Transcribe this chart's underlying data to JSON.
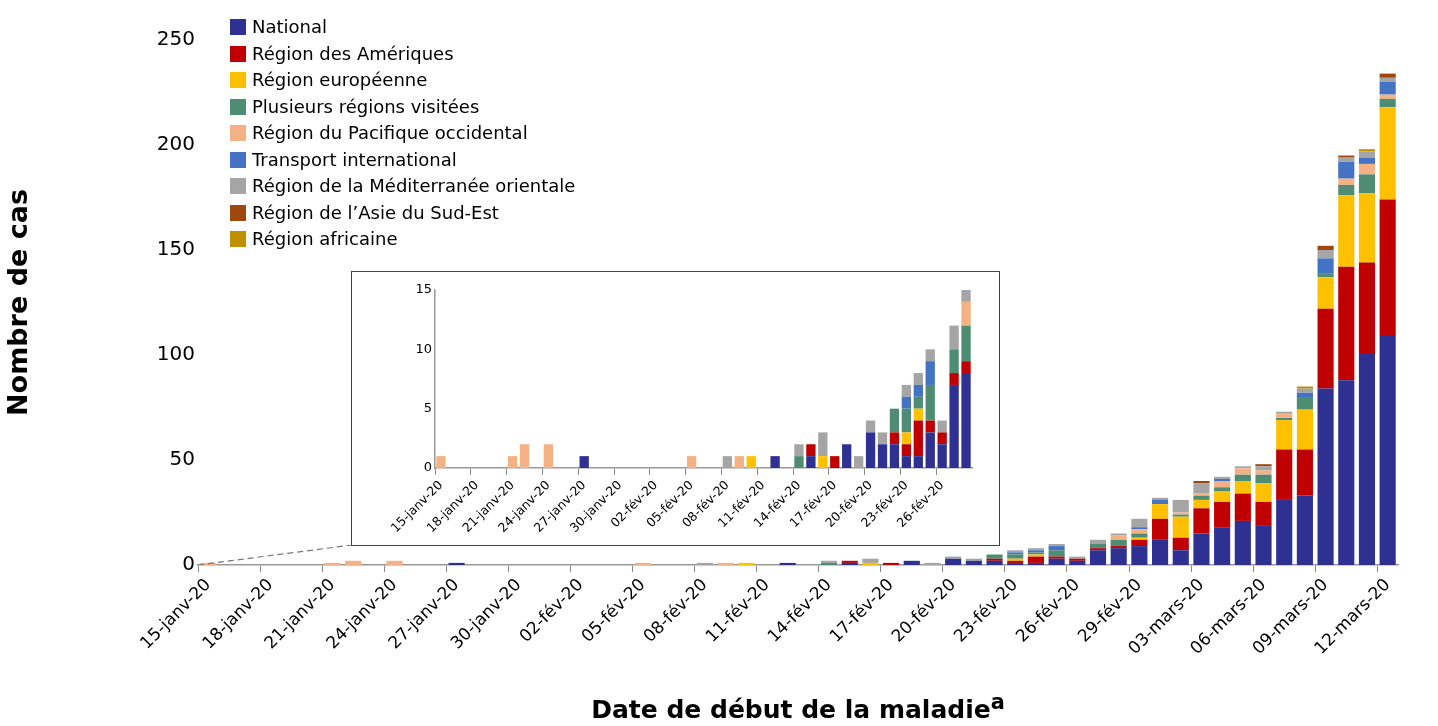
{
  "chart_data": [
    {
      "type": "bar",
      "stacked": true,
      "xlabel": "Date de début de la maladie$^{a}$",
      "ylabel": "Nombre de cas",
      "legend": "top left",
      "grid": false,
      "categories": [
        "15-janv-20",
        null,
        null,
        "18-janv-20",
        null,
        null,
        "21-janv-20",
        null,
        null,
        "24-janv-20",
        null,
        null,
        "27-janv-20",
        null,
        null,
        "30-janv-20",
        null,
        null,
        "02-fév-20",
        null,
        null,
        "05-fév-20",
        null,
        null,
        "08-fév-20",
        null,
        null,
        "11-fév-20",
        null,
        null,
        "14-fév-20",
        null,
        null,
        "17-fév-20",
        null,
        null,
        "20-fév-20",
        null,
        null,
        "23-fév-20",
        null,
        null,
        "26-fév-20",
        null,
        null,
        "29-fév-20",
        null,
        null,
        "03-mars-20",
        null,
        null,
        "06-mars-20",
        null,
        null,
        "09-mars-20",
        null,
        null,
        "12-mars-20"
      ],
      "ylim": [
        0,
        250
      ],
      "yticks": [
        0,
        50,
        100,
        150,
        200,
        250
      ],
      "series": [
        {
          "name": "National",
          "color": "#2e3192",
          "values": [
            0,
            0,
            0,
            0,
            0,
            0,
            0,
            0,
            0,
            0,
            0,
            0,
            1,
            0,
            0,
            0,
            0,
            0,
            0,
            0,
            0,
            0,
            0,
            0,
            0,
            0,
            0,
            0,
            1,
            0,
            0,
            1,
            0,
            0,
            2,
            0,
            3,
            2,
            2,
            1,
            1,
            3,
            2,
            7,
            8,
            9,
            12,
            7,
            15,
            18,
            21,
            19,
            31,
            33,
            84,
            88,
            101,
            109
          ]
        },
        {
          "name": "Région des Amériques",
          "color": "#c00000",
          "values": [
            0,
            0,
            0,
            0,
            0,
            0,
            0,
            0,
            0,
            0,
            0,
            0,
            0,
            0,
            0,
            0,
            0,
            0,
            0,
            0,
            0,
            0,
            0,
            0,
            0,
            0,
            0,
            0,
            0,
            0,
            0,
            1,
            0,
            1,
            0,
            0,
            0,
            0,
            1,
            1,
            3,
            1,
            1,
            1,
            1,
            3,
            10,
            6,
            12,
            12,
            13,
            11,
            24,
            22,
            38,
            54,
            43,
            65
          ]
        },
        {
          "name": "Région européenne",
          "color": "#ffc000",
          "values": [
            0,
            0,
            0,
            0,
            0,
            0,
            0,
            0,
            0,
            0,
            0,
            0,
            0,
            0,
            0,
            0,
            0,
            0,
            0,
            0,
            0,
            0,
            0,
            0,
            0,
            0,
            1,
            0,
            0,
            0,
            0,
            0,
            1,
            0,
            0,
            0,
            0,
            0,
            0,
            1,
            1,
            0,
            0,
            0,
            0,
            1,
            7,
            10,
            4,
            5,
            6,
            9,
            14,
            19,
            15,
            34,
            33,
            44
          ]
        },
        {
          "name": "Plusieurs régions visitées",
          "color": "#4e8c74",
          "values": [
            0,
            0,
            0,
            0,
            0,
            0,
            0,
            0,
            0,
            0,
            0,
            0,
            0,
            0,
            0,
            0,
            0,
            0,
            0,
            0,
            0,
            0,
            0,
            0,
            0,
            0,
            0,
            0,
            0,
            0,
            1,
            0,
            0,
            0,
            0,
            0,
            0,
            0,
            2,
            2,
            1,
            3,
            0,
            2,
            3,
            2,
            0,
            1,
            2,
            2,
            3,
            4,
            1,
            6,
            2,
            5,
            9,
            4
          ]
        },
        {
          "name": "Région du Pacifique occidental",
          "color": "#f4b183",
          "values": [
            1,
            0,
            0,
            0,
            0,
            0,
            1,
            2,
            0,
            2,
            0,
            0,
            0,
            0,
            0,
            0,
            0,
            0,
            0,
            0,
            0,
            1,
            0,
            0,
            0,
            1,
            0,
            0,
            0,
            0,
            0,
            0,
            0,
            0,
            0,
            0,
            0,
            0,
            0,
            0,
            0,
            0,
            0,
            0,
            2,
            2,
            0,
            1,
            1,
            3,
            3,
            2,
            2,
            0,
            0,
            3,
            5,
            2
          ]
        },
        {
          "name": "Transport international",
          "color": "#4472c4",
          "values": [
            0,
            0,
            0,
            0,
            0,
            0,
            0,
            0,
            0,
            0,
            0,
            0,
            0,
            0,
            0,
            0,
            0,
            0,
            0,
            0,
            0,
            0,
            0,
            0,
            0,
            0,
            0,
            0,
            0,
            0,
            0,
            0,
            0,
            0,
            0,
            0,
            0,
            0,
            0,
            1,
            1,
            2,
            0,
            0,
            0,
            1,
            2,
            0,
            0,
            1,
            0,
            0,
            0,
            2,
            7,
            8,
            3,
            6
          ]
        },
        {
          "name": "Région de la Méditerranée orientale",
          "color": "#a5a5a5",
          "values": [
            0,
            0,
            0,
            0,
            0,
            0,
            0,
            0,
            0,
            0,
            0,
            0,
            0,
            0,
            0,
            0,
            0,
            0,
            0,
            0,
            0,
            0,
            0,
            0,
            1,
            0,
            0,
            0,
            0,
            0,
            1,
            0,
            2,
            0,
            0,
            1,
            1,
            1,
            0,
            1,
            1,
            1,
            1,
            2,
            1,
            4,
            1,
            6,
            5,
            1,
            1,
            2,
            1,
            2,
            4,
            2,
            3,
            2
          ]
        },
        {
          "name": "Région de l’Asie du Sud-Est",
          "color": "#9e480e",
          "values": [
            0,
            0,
            0,
            0,
            0,
            0,
            0,
            0,
            0,
            0,
            0,
            0,
            0,
            0,
            0,
            0,
            0,
            0,
            0,
            0,
            0,
            0,
            0,
            0,
            0,
            0,
            0,
            0,
            0,
            0,
            0,
            0,
            0,
            0,
            0,
            0,
            0,
            0,
            0,
            0,
            0,
            0,
            0,
            0,
            0,
            0,
            0,
            0,
            1,
            0,
            0,
            1,
            0,
            0,
            2,
            1,
            0,
            2
          ]
        },
        {
          "name": "Région africaine",
          "color": "#bf9000",
          "values": [
            0,
            0,
            0,
            0,
            0,
            0,
            0,
            0,
            0,
            0,
            0,
            0,
            0,
            0,
            0,
            0,
            0,
            0,
            0,
            0,
            0,
            0,
            0,
            0,
            0,
            0,
            0,
            0,
            0,
            0,
            0,
            0,
            0,
            0,
            0,
            0,
            0,
            0,
            0,
            0,
            0,
            0,
            0,
            0,
            0,
            0,
            0,
            0,
            0,
            0,
            0,
            0,
            0,
            1,
            0,
            0,
            1,
            0
          ]
        }
      ]
    },
    {
      "type": "bar",
      "stacked": true,
      "grid": false,
      "categories": [
        "15-janv-20",
        null,
        null,
        "18-janv-20",
        null,
        null,
        "21-janv-20",
        null,
        null,
        "24-janv-20",
        null,
        null,
        "27-janv-20",
        null,
        null,
        "30-janv-20",
        null,
        null,
        "02-fév-20",
        null,
        null,
        "05-fév-20",
        null,
        null,
        "08-fév-20",
        null,
        null,
        "11-fév-20",
        null,
        null,
        "14-fév-20",
        null,
        null,
        "17-fév-20",
        null,
        null,
        "20-fév-20",
        null,
        null,
        "23-fév-20",
        null,
        null,
        "26-fév-20",
        null,
        null
      ],
      "ylim": [
        0,
        15
      ],
      "yticks": [
        0,
        5,
        10,
        15
      ],
      "series": [
        {
          "color": "#2e3192",
          "values": [
            0,
            0,
            0,
            0,
            0,
            0,
            0,
            0,
            0,
            0,
            0,
            0,
            1,
            0,
            0,
            0,
            0,
            0,
            0,
            0,
            0,
            0,
            0,
            0,
            0,
            0,
            0,
            0,
            1,
            0,
            0,
            1,
            0,
            0,
            2,
            0,
            3,
            2,
            2,
            1,
            1,
            3,
            2,
            7,
            8
          ]
        },
        {
          "color": "#c00000",
          "values": [
            0,
            0,
            0,
            0,
            0,
            0,
            0,
            0,
            0,
            0,
            0,
            0,
            0,
            0,
            0,
            0,
            0,
            0,
            0,
            0,
            0,
            0,
            0,
            0,
            0,
            0,
            0,
            0,
            0,
            0,
            0,
            1,
            0,
            1,
            0,
            0,
            0,
            0,
            1,
            1,
            3,
            1,
            1,
            1,
            1
          ]
        },
        {
          "color": "#ffc000",
          "values": [
            0,
            0,
            0,
            0,
            0,
            0,
            0,
            0,
            0,
            0,
            0,
            0,
            0,
            0,
            0,
            0,
            0,
            0,
            0,
            0,
            0,
            0,
            0,
            0,
            0,
            0,
            1,
            0,
            0,
            0,
            0,
            0,
            1,
            0,
            0,
            0,
            0,
            0,
            0,
            1,
            1,
            0,
            0,
            0,
            0
          ]
        },
        {
          "color": "#4e8c74",
          "values": [
            0,
            0,
            0,
            0,
            0,
            0,
            0,
            0,
            0,
            0,
            0,
            0,
            0,
            0,
            0,
            0,
            0,
            0,
            0,
            0,
            0,
            0,
            0,
            0,
            0,
            0,
            0,
            0,
            0,
            0,
            1,
            0,
            0,
            0,
            0,
            0,
            0,
            0,
            2,
            2,
            1,
            3,
            0,
            2,
            3
          ]
        },
        {
          "color": "#f4b183",
          "values": [
            1,
            0,
            0,
            0,
            0,
            0,
            1,
            2,
            0,
            2,
            0,
            0,
            0,
            0,
            0,
            0,
            0,
            0,
            0,
            0,
            0,
            1,
            0,
            0,
            0,
            1,
            0,
            0,
            0,
            0,
            0,
            0,
            0,
            0,
            0,
            0,
            0,
            0,
            0,
            0,
            0,
            0,
            0,
            0,
            2
          ]
        },
        {
          "color": "#4472c4",
          "values": [
            0,
            0,
            0,
            0,
            0,
            0,
            0,
            0,
            0,
            0,
            0,
            0,
            0,
            0,
            0,
            0,
            0,
            0,
            0,
            0,
            0,
            0,
            0,
            0,
            0,
            0,
            0,
            0,
            0,
            0,
            0,
            0,
            0,
            0,
            0,
            0,
            0,
            0,
            0,
            1,
            1,
            2,
            0,
            0,
            0
          ]
        },
        {
          "color": "#a5a5a5",
          "values": [
            0,
            0,
            0,
            0,
            0,
            0,
            0,
            0,
            0,
            0,
            0,
            0,
            0,
            0,
            0,
            0,
            0,
            0,
            0,
            0,
            0,
            0,
            0,
            0,
            1,
            0,
            0,
            0,
            0,
            0,
            1,
            0,
            2,
            0,
            0,
            1,
            1,
            1,
            0,
            1,
            1,
            1,
            1,
            2,
            1
          ]
        }
      ]
    }
  ]
}
